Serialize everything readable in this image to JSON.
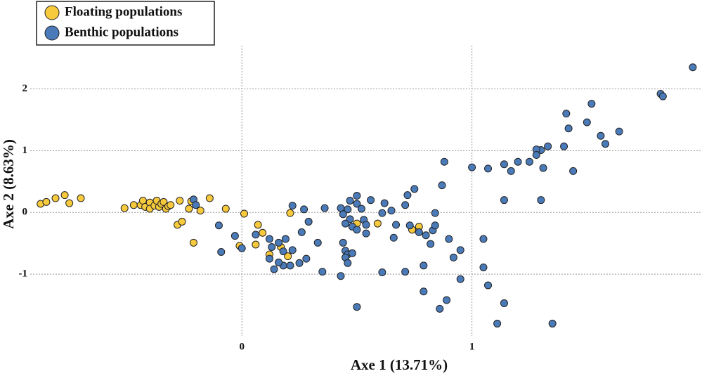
{
  "chart_data": {
    "type": "scatter",
    "xlabel": "Axe 1 (13.71%)",
    "ylabel": "Axe 2 (8.63%)",
    "xlim": [
      -0.92,
      2.0
    ],
    "ylim": [
      -2.0,
      2.7
    ],
    "xticks": [
      0,
      1
    ],
    "yticks": [
      -1,
      0,
      1,
      2
    ],
    "grid": true,
    "legend": "upper left",
    "series": [
      {
        "name": "Floating populations",
        "color": "#f7c93c",
        "x": [
          -0.875,
          -0.85,
          -0.81,
          -0.77,
          -0.75,
          -0.7,
          -0.51,
          -0.47,
          -0.44,
          -0.43,
          -0.42,
          -0.4,
          -0.4,
          -0.38,
          -0.37,
          -0.36,
          -0.35,
          -0.34,
          -0.33,
          -0.32,
          -0.31,
          -0.27,
          -0.23,
          -0.22,
          -0.18,
          -0.14,
          -0.07,
          0.01,
          0.07,
          0.09,
          0.06,
          -0.28,
          -0.26,
          -0.21,
          -0.01,
          0.12,
          0.17,
          0.2,
          0.21,
          0.5,
          0.59,
          0.74,
          0.77
        ],
        "y": [
          0.14,
          0.17,
          0.23,
          0.28,
          0.15,
          0.23,
          0.07,
          0.12,
          0.12,
          0.19,
          0.09,
          0.16,
          0.06,
          0.11,
          0.19,
          0.09,
          0.14,
          0.17,
          0.06,
          0.1,
          0.12,
          0.19,
          0.06,
          0.18,
          0.03,
          0.23,
          0.06,
          -0.02,
          -0.2,
          -0.33,
          -0.52,
          -0.2,
          -0.15,
          -0.49,
          -0.54,
          -0.68,
          -0.56,
          -0.71,
          -0.01,
          -0.18,
          -0.18,
          -0.28,
          -0.23
        ]
      },
      {
        "name": "Benthic populations",
        "color": "#4a7ab8",
        "x": [
          1.96,
          1.82,
          1.83,
          1.41,
          1.52,
          1.5,
          1.42,
          1.56,
          1.64,
          1.58,
          1.4,
          1.33,
          1.3,
          1.28,
          1.28,
          1.25,
          1.2,
          1.17,
          1.14,
          1.07,
          1.0,
          1.31,
          1.44,
          0.88,
          1.3,
          1.14,
          0.87,
          0.75,
          0.72,
          0.71,
          0.65,
          0.62,
          0.56,
          0.61,
          0.5,
          0.5,
          0.52,
          0.47,
          0.46,
          0.43,
          0.44,
          0.47,
          0.45,
          0.48,
          0.5,
          0.53,
          0.54,
          0.54,
          0.44,
          0.45,
          0.46,
          0.45,
          0.48,
          0.46,
          0.43,
          0.5,
          0.35,
          0.36,
          0.27,
          0.29,
          0.26,
          0.22,
          0.33,
          0.28,
          0.25,
          0.21,
          0.18,
          0.16,
          0.14,
          0.12,
          0.13,
          0.16,
          0.19,
          0.22,
          0.18,
          0.12,
          0.06,
          0.0,
          -0.09,
          -0.1,
          -0.03,
          -0.21,
          -0.2,
          0.67,
          0.73,
          0.66,
          0.77,
          0.8,
          0.83,
          0.84,
          0.84,
          0.82,
          0.9,
          0.95,
          0.92,
          0.79,
          0.71,
          0.61,
          0.79,
          0.95,
          0.89,
          0.86,
          1.05,
          1.05,
          1.07,
          1.14,
          1.11,
          1.35
        ],
        "y": [
          2.35,
          1.92,
          1.88,
          1.6,
          1.76,
          1.46,
          1.36,
          1.24,
          1.31,
          1.11,
          1.07,
          1.07,
          1.01,
          1.02,
          0.93,
          0.82,
          0.82,
          0.67,
          0.78,
          0.71,
          0.73,
          0.72,
          0.67,
          0.82,
          0.2,
          0.2,
          0.44,
          0.38,
          0.28,
          0.12,
          0.03,
          0.15,
          0.2,
          -0.01,
          0.27,
          0.14,
          0.06,
          0.19,
          0.05,
          0.07,
          -0.03,
          -0.11,
          -0.18,
          -0.23,
          -0.28,
          -0.12,
          -0.2,
          -0.34,
          -0.49,
          -0.62,
          -0.68,
          -0.73,
          -0.66,
          -0.82,
          -1.03,
          -1.53,
          -0.96,
          0.07,
          0.05,
          -0.15,
          -0.32,
          0.11,
          -0.49,
          -0.75,
          -0.82,
          -0.86,
          -0.86,
          -0.81,
          -0.92,
          -0.75,
          -0.56,
          -0.49,
          -0.43,
          -0.61,
          -0.63,
          -0.43,
          -0.36,
          -0.58,
          -0.64,
          -0.21,
          -0.38,
          0.21,
          0.12,
          -0.2,
          -0.21,
          -0.41,
          -0.32,
          -0.37,
          -0.29,
          -0.21,
          -0.01,
          -0.51,
          -0.43,
          -0.61,
          -0.73,
          -0.86,
          -0.96,
          -0.97,
          -1.28,
          -1.08,
          -1.42,
          -1.56,
          -0.89,
          -0.43,
          -1.18,
          -1.47,
          -1.8,
          -1.8
        ]
      }
    ]
  }
}
